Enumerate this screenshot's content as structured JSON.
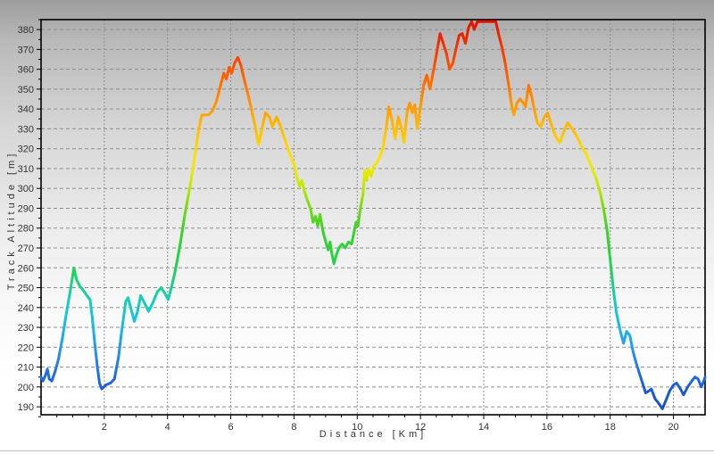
{
  "chart_data": {
    "type": "line",
    "title": "",
    "xlabel": "Distance [Km]",
    "ylabel": "Track Altitude [m]",
    "xlim": [
      0,
      21
    ],
    "ylim": [
      186,
      385
    ],
    "x_ticks": [
      2,
      4,
      6,
      8,
      10,
      12,
      14,
      16,
      18,
      20
    ],
    "y_ticks": [
      190,
      200,
      210,
      220,
      230,
      240,
      250,
      260,
      270,
      280,
      290,
      300,
      310,
      320,
      330,
      340,
      350,
      360,
      370,
      380
    ],
    "x_minor_step": 0.5,
    "y_minor_step": 5,
    "grid": true,
    "grid_color": "#8e8e8e",
    "axis_color": "#000000",
    "tick_label_color": "#333333",
    "line_width": 3,
    "color_encoding": "altitude-rainbow",
    "gradient_stops": [
      {
        "alt": 385,
        "color": "#e00f00"
      },
      {
        "alt": 375,
        "color": "#ee2a00"
      },
      {
        "alt": 365,
        "color": "#fa4600"
      },
      {
        "alt": 355,
        "color": "#ff6600"
      },
      {
        "alt": 345,
        "color": "#ff8c00"
      },
      {
        "alt": 335,
        "color": "#ffae00"
      },
      {
        "alt": 325,
        "color": "#ffcc00"
      },
      {
        "alt": 315,
        "color": "#fbe400"
      },
      {
        "alt": 307,
        "color": "#e2ea00"
      },
      {
        "alt": 298,
        "color": "#b0e400"
      },
      {
        "alt": 290,
        "color": "#72da10"
      },
      {
        "alt": 280,
        "color": "#3cd228"
      },
      {
        "alt": 268,
        "color": "#2ad23a"
      },
      {
        "alt": 255,
        "color": "#1ed06e"
      },
      {
        "alt": 246,
        "color": "#16d0a8"
      },
      {
        "alt": 237,
        "color": "#14c8d4"
      },
      {
        "alt": 228,
        "color": "#1ab2ec"
      },
      {
        "alt": 218,
        "color": "#2492f0"
      },
      {
        "alt": 208,
        "color": "#2072e6"
      },
      {
        "alt": 198,
        "color": "#1c5ad8"
      },
      {
        "alt": 186,
        "color": "#1a46c8"
      }
    ],
    "series": [
      {
        "name": "track-altitude-profile",
        "points": [
          [
            0.0,
            205
          ],
          [
            0.06,
            203
          ],
          [
            0.14,
            206
          ],
          [
            0.2,
            209
          ],
          [
            0.26,
            204
          ],
          [
            0.34,
            203
          ],
          [
            0.45,
            208
          ],
          [
            0.55,
            214
          ],
          [
            0.68,
            225
          ],
          [
            0.8,
            237
          ],
          [
            0.92,
            248
          ],
          [
            1.04,
            260
          ],
          [
            1.12,
            254
          ],
          [
            1.22,
            251
          ],
          [
            1.32,
            249
          ],
          [
            1.45,
            246
          ],
          [
            1.55,
            244
          ],
          [
            1.62,
            235
          ],
          [
            1.7,
            222
          ],
          [
            1.78,
            210
          ],
          [
            1.85,
            202
          ],
          [
            1.92,
            199
          ],
          [
            2.05,
            201
          ],
          [
            2.2,
            202
          ],
          [
            2.32,
            204
          ],
          [
            2.45,
            215
          ],
          [
            2.55,
            228
          ],
          [
            2.68,
            243
          ],
          [
            2.75,
            245
          ],
          [
            2.85,
            239
          ],
          [
            2.95,
            233
          ],
          [
            3.05,
            238
          ],
          [
            3.15,
            246
          ],
          [
            3.28,
            242
          ],
          [
            3.4,
            238
          ],
          [
            3.55,
            243
          ],
          [
            3.68,
            248
          ],
          [
            3.8,
            250
          ],
          [
            3.92,
            247
          ],
          [
            4.02,
            244
          ],
          [
            4.12,
            250
          ],
          [
            4.25,
            259
          ],
          [
            4.4,
            272
          ],
          [
            4.55,
            287
          ],
          [
            4.7,
            300
          ],
          [
            4.85,
            315
          ],
          [
            4.98,
            329
          ],
          [
            5.08,
            337
          ],
          [
            5.3,
            337
          ],
          [
            5.42,
            339
          ],
          [
            5.55,
            344
          ],
          [
            5.68,
            352
          ],
          [
            5.78,
            358
          ],
          [
            5.86,
            355
          ],
          [
            5.95,
            361
          ],
          [
            6.03,
            358
          ],
          [
            6.12,
            363
          ],
          [
            6.22,
            366
          ],
          [
            6.32,
            362
          ],
          [
            6.42,
            355
          ],
          [
            6.55,
            347
          ],
          [
            6.65,
            340
          ],
          [
            6.75,
            333
          ],
          [
            6.88,
            322
          ],
          [
            7.0,
            331
          ],
          [
            7.1,
            338
          ],
          [
            7.22,
            336
          ],
          [
            7.32,
            331
          ],
          [
            7.45,
            336
          ],
          [
            7.58,
            331
          ],
          [
            7.7,
            325
          ],
          [
            7.85,
            318
          ],
          [
            8.0,
            312
          ],
          [
            8.1,
            305
          ],
          [
            8.18,
            301
          ],
          [
            8.25,
            304
          ],
          [
            8.32,
            299
          ],
          [
            8.42,
            294
          ],
          [
            8.52,
            290
          ],
          [
            8.6,
            283
          ],
          [
            8.68,
            286
          ],
          [
            8.75,
            281
          ],
          [
            8.82,
            287
          ],
          [
            8.92,
            278
          ],
          [
            9.02,
            272
          ],
          [
            9.08,
            269
          ],
          [
            9.14,
            273
          ],
          [
            9.2,
            267
          ],
          [
            9.26,
            262
          ],
          [
            9.33,
            266
          ],
          [
            9.42,
            270
          ],
          [
            9.52,
            272
          ],
          [
            9.62,
            270
          ],
          [
            9.72,
            273
          ],
          [
            9.82,
            272
          ],
          [
            9.9,
            278
          ],
          [
            9.96,
            283
          ],
          [
            10.02,
            281
          ],
          [
            10.1,
            290
          ],
          [
            10.18,
            297
          ],
          [
            10.24,
            309
          ],
          [
            10.3,
            304
          ],
          [
            10.36,
            310
          ],
          [
            10.44,
            306
          ],
          [
            10.52,
            311
          ],
          [
            10.62,
            313
          ],
          [
            10.72,
            316
          ],
          [
            10.82,
            321
          ],
          [
            10.92,
            331
          ],
          [
            11.0,
            341
          ],
          [
            11.1,
            334
          ],
          [
            11.2,
            325
          ],
          [
            11.3,
            336
          ],
          [
            11.4,
            330
          ],
          [
            11.48,
            323
          ],
          [
            11.58,
            339
          ],
          [
            11.66,
            343
          ],
          [
            11.74,
            338
          ],
          [
            11.82,
            342
          ],
          [
            11.9,
            330
          ],
          [
            12.0,
            341
          ],
          [
            12.1,
            352
          ],
          [
            12.2,
            357
          ],
          [
            12.3,
            350
          ],
          [
            12.42,
            360
          ],
          [
            12.52,
            369
          ],
          [
            12.62,
            378
          ],
          [
            12.72,
            373
          ],
          [
            12.82,
            368
          ],
          [
            12.92,
            360
          ],
          [
            13.02,
            363
          ],
          [
            13.12,
            370
          ],
          [
            13.22,
            377
          ],
          [
            13.32,
            378
          ],
          [
            13.42,
            373
          ],
          [
            13.52,
            381
          ],
          [
            13.62,
            384
          ],
          [
            13.7,
            380
          ],
          [
            13.8,
            384
          ],
          [
            14.0,
            384
          ],
          [
            14.2,
            384
          ],
          [
            14.38,
            384
          ],
          [
            14.48,
            377
          ],
          [
            14.58,
            371
          ],
          [
            14.68,
            363
          ],
          [
            14.78,
            353
          ],
          [
            14.88,
            342
          ],
          [
            14.95,
            337
          ],
          [
            15.05,
            343
          ],
          [
            15.15,
            345
          ],
          [
            15.25,
            343
          ],
          [
            15.32,
            341
          ],
          [
            15.42,
            352
          ],
          [
            15.52,
            346
          ],
          [
            15.62,
            338
          ],
          [
            15.7,
            333
          ],
          [
            15.8,
            331
          ],
          [
            15.92,
            336
          ],
          [
            16.02,
            338
          ],
          [
            16.12,
            333
          ],
          [
            16.25,
            327
          ],
          [
            16.4,
            323
          ],
          [
            16.52,
            328
          ],
          [
            16.65,
            333
          ],
          [
            16.8,
            330
          ],
          [
            16.95,
            326
          ],
          [
            17.1,
            321
          ],
          [
            17.25,
            317
          ],
          [
            17.4,
            311
          ],
          [
            17.55,
            305
          ],
          [
            17.68,
            298
          ],
          [
            17.8,
            289
          ],
          [
            17.9,
            279
          ],
          [
            18.0,
            264
          ],
          [
            18.1,
            249
          ],
          [
            18.2,
            237
          ],
          [
            18.32,
            228
          ],
          [
            18.42,
            222
          ],
          [
            18.52,
            228
          ],
          [
            18.62,
            226
          ],
          [
            18.72,
            218
          ],
          [
            18.82,
            212
          ],
          [
            18.92,
            207
          ],
          [
            19.02,
            202
          ],
          [
            19.12,
            197
          ],
          [
            19.22,
            198
          ],
          [
            19.3,
            199
          ],
          [
            19.42,
            194
          ],
          [
            19.52,
            192
          ],
          [
            19.65,
            189
          ],
          [
            19.78,
            194
          ],
          [
            19.88,
            198
          ],
          [
            20.0,
            201
          ],
          [
            20.1,
            202
          ],
          [
            20.22,
            199
          ],
          [
            20.32,
            196
          ],
          [
            20.45,
            200
          ],
          [
            20.58,
            203
          ],
          [
            20.68,
            205
          ],
          [
            20.78,
            204
          ],
          [
            20.88,
            200
          ],
          [
            20.96,
            203
          ],
          [
            21.0,
            205
          ]
        ]
      }
    ]
  }
}
